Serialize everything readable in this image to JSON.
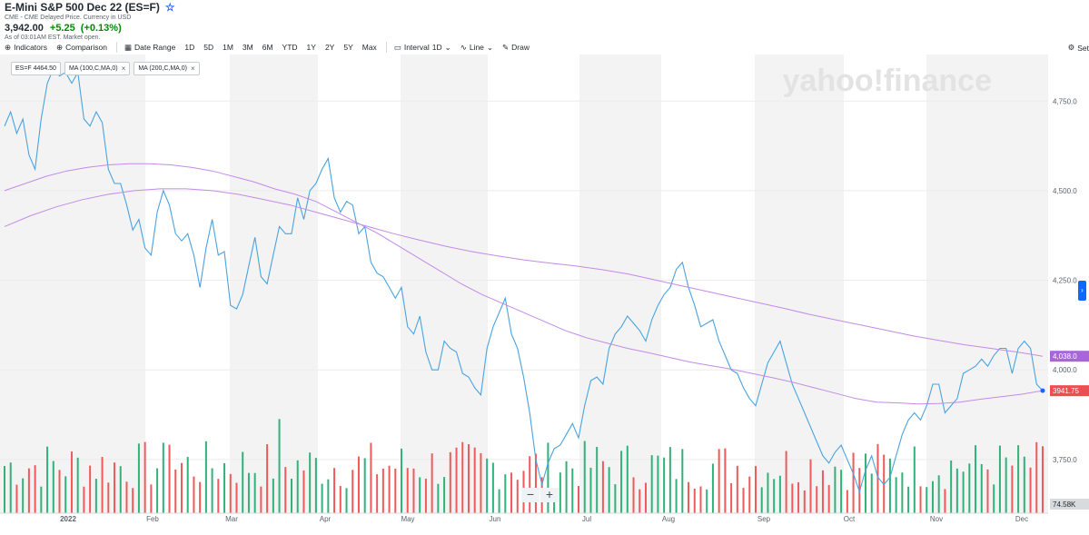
{
  "header": {
    "title": "E-Mini S&P 500 Dec 22 (ES=F)",
    "source": "CME - CME Delayed Price. Currency in USD",
    "price": "3,942.00",
    "change": "+5.25",
    "change_pct": "(+0.13%)",
    "as_of": "As of 03:01AM EST. Market open."
  },
  "toolbar": {
    "indicators": "Indicators",
    "comparison": "Comparison",
    "date_range": "Date Range",
    "ranges": [
      "1D",
      "5D",
      "1M",
      "3M",
      "6M",
      "YTD",
      "1Y",
      "2Y",
      "5Y",
      "Max"
    ],
    "interval": "Interval",
    "interval_value": "1D",
    "line": "Line",
    "draw": "Draw",
    "settings": "Set"
  },
  "legend": {
    "price_chip": "ES=F  4464.50",
    "ma100_chip": "MA (100,C,MA,0)",
    "ma200_chip": "MA (200,C,MA,0)"
  },
  "watermark": "yahoo!finance",
  "zoom": {
    "minus": "−",
    "plus": "+"
  },
  "colors": {
    "price_line": "#4aa3df",
    "ma_line": "#c48ae8",
    "vol_up": "#31b27a",
    "vol_down": "#ef5a5a",
    "band": "#f3f3f3",
    "last_price_label": "#ec4f4f",
    "ma_label": "#a865d9"
  },
  "chart_data": {
    "type": "line",
    "ylim": [
      3600,
      4880
    ],
    "yticks": [
      "4,750.0",
      "4,500.0",
      "4,250.0",
      "4,000.0",
      "3,750.0"
    ],
    "ytick_values": [
      4750,
      4500,
      4250,
      4000,
      3750
    ],
    "xticks": [
      "2022",
      "Feb",
      "Mar",
      "Apr",
      "May",
      "Jun",
      "Jul",
      "Aug",
      "Sep",
      "Oct",
      "Nov",
      "Dec"
    ],
    "last_price_label": "3941.75",
    "ma_label": "4,038.0",
    "volume_label": "74.58K",
    "series": [
      {
        "name": "ES=F",
        "values": [
          4680,
          4720,
          4660,
          4700,
          4600,
          4560,
          4700,
          4800,
          4840,
          4820,
          4830,
          4800,
          4830,
          4700,
          4680,
          4720,
          4690,
          4560,
          4520,
          4520,
          4460,
          4390,
          4420,
          4340,
          4320,
          4440,
          4500,
          4460,
          4380,
          4360,
          4380,
          4320,
          4230,
          4340,
          4420,
          4320,
          4330,
          4180,
          4170,
          4210,
          4290,
          4370,
          4260,
          4240,
          4320,
          4400,
          4380,
          4380,
          4480,
          4420,
          4500,
          4520,
          4560,
          4590,
          4480,
          4440,
          4470,
          4460,
          4380,
          4400,
          4300,
          4270,
          4260,
          4230,
          4200,
          4230,
          4120,
          4100,
          4150,
          4050,
          4000,
          4000,
          4080,
          4060,
          4050,
          3990,
          3980,
          3950,
          3930,
          4060,
          4120,
          4160,
          4200,
          4100,
          4060,
          3980,
          3880,
          3750,
          3680,
          3740,
          3780,
          3790,
          3820,
          3850,
          3810,
          3900,
          3970,
          3980,
          3960,
          4060,
          4100,
          4120,
          4150,
          4130,
          4110,
          4080,
          4140,
          4180,
          4210,
          4230,
          4280,
          4300,
          4230,
          4180,
          4120,
          4130,
          4140,
          4080,
          4040,
          4000,
          3990,
          3950,
          3920,
          3900,
          3960,
          4020,
          4050,
          4080,
          4020,
          3960,
          3920,
          3880,
          3840,
          3800,
          3760,
          3740,
          3770,
          3790,
          3750,
          3710,
          3660,
          3720,
          3760,
          3700,
          3680,
          3700,
          3760,
          3820,
          3860,
          3880,
          3860,
          3900,
          3960,
          3960,
          3880,
          3900,
          3920,
          3990,
          4000,
          4010,
          4030,
          4010,
          4040,
          4060,
          4060,
          3990,
          4060,
          4080,
          4060,
          3960,
          3942
        ]
      },
      {
        "name": "MA (100,C,MA,0)",
        "values": [
          4500,
          4520,
          4540,
          4555,
          4565,
          4572,
          4575,
          4575,
          4572,
          4565,
          4555,
          4540,
          4525,
          4505,
          4490,
          4470,
          4440,
          4410,
          4380,
          4345,
          4310,
          4275,
          4240,
          4210,
          4185,
          4160,
          4135,
          4110,
          4090,
          4075,
          4060,
          4048,
          4035,
          4022,
          4012,
          4002,
          3990,
          3978,
          3965,
          3950,
          3935,
          3920,
          3910,
          3908,
          3905,
          3906,
          3910,
          3918,
          3925,
          3932,
          3942
        ]
      },
      {
        "name": "MA (200,C,MA,0)",
        "values": [
          4400,
          4430,
          4455,
          4475,
          4490,
          4500,
          4505,
          4505,
          4500,
          4490,
          4475,
          4460,
          4440,
          4420,
          4400,
          4380,
          4362,
          4345,
          4330,
          4318,
          4307,
          4298,
          4290,
          4280,
          4268,
          4252,
          4236,
          4220,
          4204,
          4188,
          4172,
          4155,
          4140,
          4125,
          4110,
          4095,
          4082,
          4070,
          4060,
          4050,
          4038
        ]
      }
    ]
  }
}
